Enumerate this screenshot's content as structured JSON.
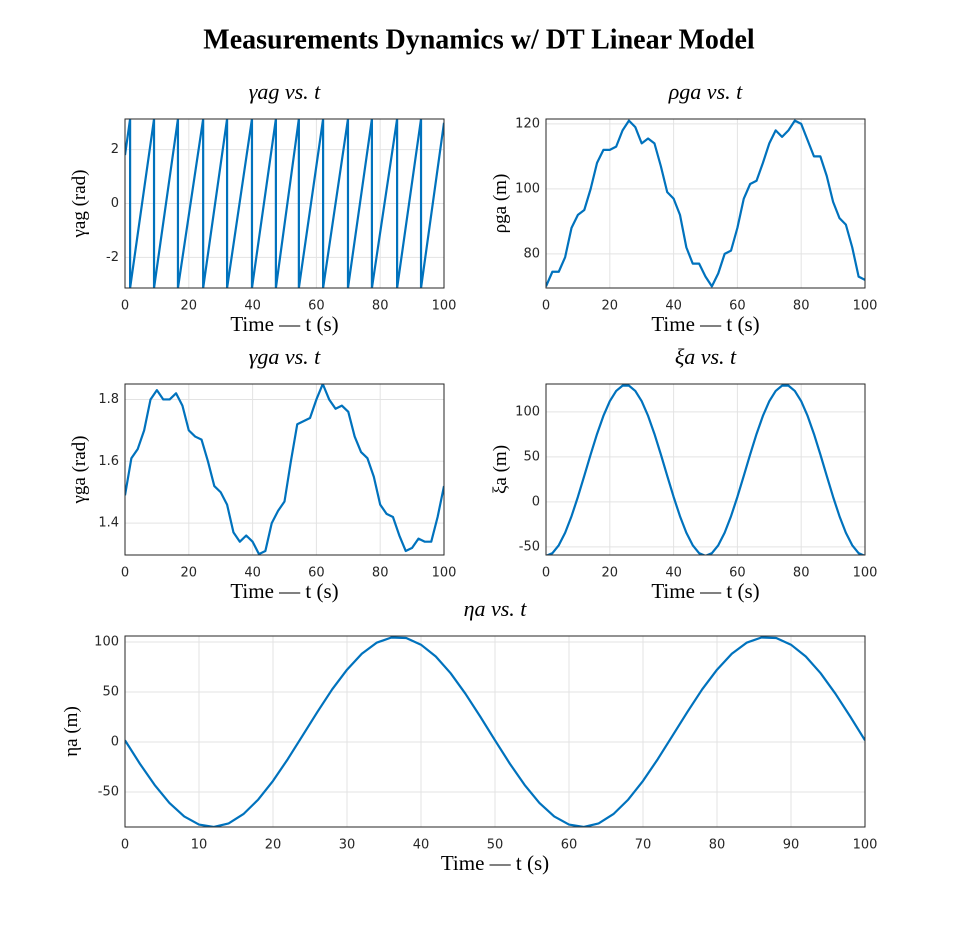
{
  "title": "Measurements Dynamics w/ DT Linear Model",
  "chart_data": [
    {
      "type": "line",
      "title": "γag vs. t",
      "xlabel": "Time — t (s)",
      "ylabel": "γag (rad)",
      "color": "#0072BD",
      "grid": true,
      "x": [
        0,
        1.6,
        1.6,
        9.1,
        9.1,
        16.6,
        16.6,
        24.5,
        24.5,
        32.0,
        32.0,
        39.8,
        39.8,
        47.3,
        47.3,
        54.5,
        54.5,
        62.1,
        62.1,
        69.9,
        69.9,
        77.4,
        77.4,
        85.3,
        85.3,
        92.8,
        92.8,
        100
      ],
      "values": [
        1.8,
        3.14,
        -3.14,
        3.14,
        -3.14,
        3.14,
        -3.14,
        3.14,
        -3.14,
        3.14,
        -3.14,
        3.14,
        -3.14,
        3.14,
        -3.14,
        3.14,
        -3.14,
        3.14,
        -3.14,
        3.14,
        -3.14,
        3.14,
        -3.14,
        3.14,
        -3.14,
        3.14,
        -3.14,
        3.0
      ],
      "xlim": [
        0,
        100
      ],
      "xticks": [
        0,
        20,
        40,
        60,
        80,
        100
      ],
      "ylim": [
        -3.14,
        3.14
      ],
      "yticks": [
        -2,
        0,
        2
      ]
    },
    {
      "type": "line",
      "title": "ρga vs. t",
      "xlabel": "Time — t (s)",
      "ylabel": "ρga (m)",
      "color": "#0072BD",
      "grid": true,
      "x": [
        0,
        2,
        4,
        6,
        8,
        10,
        12,
        14,
        16,
        18,
        20,
        22,
        24,
        26,
        28,
        30,
        32,
        34,
        36,
        38,
        40,
        42,
        44,
        46,
        48,
        50,
        52,
        54,
        56,
        58,
        60,
        62,
        64,
        66,
        68,
        70,
        72,
        74,
        76,
        78,
        80,
        82,
        84,
        86,
        88,
        90,
        92,
        94,
        96,
        98,
        100
      ],
      "values": [
        70,
        74.5,
        74.5,
        79,
        88,
        92,
        93.5,
        100,
        108,
        112,
        112,
        113,
        118,
        121,
        119,
        114,
        115.5,
        114,
        107,
        99,
        97,
        92,
        82,
        77,
        77,
        73,
        70,
        74,
        80,
        81,
        88,
        97,
        101.5,
        102.5,
        108,
        114,
        118,
        116,
        118,
        121,
        120,
        115,
        110,
        110,
        104,
        96,
        91,
        89,
        82,
        73,
        72
      ],
      "xlim": [
        0,
        100
      ],
      "xticks": [
        0,
        20,
        40,
        60,
        80,
        100
      ],
      "ylim": [
        69.5,
        121.5
      ],
      "yticks": [
        80,
        100,
        120
      ]
    },
    {
      "type": "line",
      "title": "γga vs. t",
      "xlabel": "Time — t (s)",
      "ylabel": "γga (rad)",
      "color": "#0072BD",
      "grid": true,
      "x": [
        0,
        2,
        4,
        6,
        8,
        10,
        12,
        14,
        16,
        18,
        20,
        22,
        24,
        26,
        28,
        30,
        32,
        34,
        36,
        38,
        40,
        42,
        44,
        46,
        48,
        50,
        52,
        54,
        56,
        58,
        60,
        62,
        64,
        66,
        68,
        70,
        72,
        74,
        76,
        78,
        80,
        82,
        84,
        86,
        88,
        90,
        92,
        94,
        96,
        98,
        100
      ],
      "values": [
        1.49,
        1.61,
        1.64,
        1.7,
        1.8,
        1.83,
        1.8,
        1.8,
        1.82,
        1.78,
        1.7,
        1.68,
        1.67,
        1.6,
        1.52,
        1.5,
        1.46,
        1.37,
        1.34,
        1.36,
        1.34,
        1.3,
        1.31,
        1.4,
        1.44,
        1.47,
        1.6,
        1.72,
        1.73,
        1.74,
        1.8,
        1.85,
        1.8,
        1.77,
        1.78,
        1.76,
        1.68,
        1.63,
        1.61,
        1.55,
        1.46,
        1.43,
        1.42,
        1.36,
        1.31,
        1.32,
        1.35,
        1.34,
        1.34,
        1.42,
        1.52
      ],
      "xlim": [
        0,
        100
      ],
      "xticks": [
        0,
        20,
        40,
        60,
        80,
        100
      ],
      "ylim": [
        1.297,
        1.85
      ],
      "yticks": [
        1.4,
        1.6,
        1.8
      ]
    },
    {
      "type": "line",
      "title": "ξa vs. t",
      "xlabel": "Time — t (s)",
      "ylabel": "ξa (m)",
      "color": "#0072BD",
      "grid": true,
      "x": [
        0,
        2,
        4,
        6,
        8,
        10,
        12,
        14,
        16,
        18,
        20,
        22,
        24,
        26,
        28,
        30,
        32,
        34,
        36,
        38,
        40,
        42,
        44,
        46,
        48,
        50,
        52,
        54,
        56,
        58,
        60,
        62,
        64,
        66,
        68,
        70,
        72,
        74,
        76,
        78,
        80,
        82,
        84,
        86,
        88,
        90,
        92,
        94,
        96,
        98,
        100
      ],
      "values": [
        -60,
        -57.0,
        -48.2,
        -34.3,
        -15.9,
        5.6,
        29.0,
        52.8,
        75.5,
        95.6,
        111.9,
        123.3,
        129.2,
        129.2,
        123.3,
        111.9,
        95.6,
        75.5,
        52.8,
        29.0,
        5.6,
        -15.9,
        -34.3,
        -48.2,
        -57.0,
        -60,
        -57.0,
        -48.2,
        -34.3,
        -15.9,
        5.6,
        29.0,
        52.8,
        75.5,
        95.6,
        111.9,
        123.3,
        129.2,
        129.2,
        123.3,
        111.9,
        95.6,
        75.5,
        52.8,
        29.0,
        5.6,
        -15.9,
        -34.3,
        -48.2,
        -57.0,
        -60
      ],
      "xlim": [
        0,
        100
      ],
      "xticks": [
        0,
        20,
        40,
        60,
        80,
        100
      ],
      "ylim": [
        -59,
        131
      ],
      "yticks": [
        -50,
        0,
        50,
        100
      ]
    },
    {
      "type": "line",
      "title": "ηa vs. t",
      "xlabel": "Time — t (s)",
      "ylabel": "ηa (m)",
      "color": "#0072BD",
      "grid": true,
      "x": [
        0,
        2,
        4,
        6,
        8,
        10,
        12,
        14,
        16,
        18,
        20,
        22,
        24,
        26,
        28,
        30,
        32,
        34,
        36,
        38,
        40,
        42,
        44,
        46,
        48,
        50,
        52,
        54,
        56,
        58,
        60,
        62,
        64,
        66,
        68,
        70,
        72,
        74,
        76,
        78,
        80,
        82,
        84,
        86,
        88,
        90,
        92,
        94,
        96,
        98,
        100
      ],
      "values": [
        1.7,
        -21.6,
        -42.9,
        -60.9,
        -74.4,
        -82.6,
        -85.0,
        -81.4,
        -72.1,
        -57.6,
        -38.9,
        -17.1,
        6.4,
        30.1,
        52.7,
        72.3,
        88.2,
        99.3,
        104.5,
        104.0,
        97.3,
        85.5,
        68.8,
        48.3,
        25.5,
        1.7,
        -21.6,
        -42.9,
        -60.9,
        -74.4,
        -82.6,
        -85.0,
        -81.4,
        -72.1,
        -57.6,
        -38.9,
        -17.1,
        6.4,
        30.1,
        52.7,
        72.3,
        88.2,
        99.3,
        104.5,
        104.0,
        97.3,
        85.5,
        68.8,
        48.3,
        25.5,
        1.7
      ],
      "xlim": [
        0,
        100
      ],
      "xticks": [
        0,
        10,
        20,
        30,
        40,
        50,
        60,
        70,
        80,
        90,
        100
      ],
      "ylim": [
        -85,
        106
      ],
      "yticks": [
        -50,
        0,
        50,
        100
      ]
    }
  ]
}
